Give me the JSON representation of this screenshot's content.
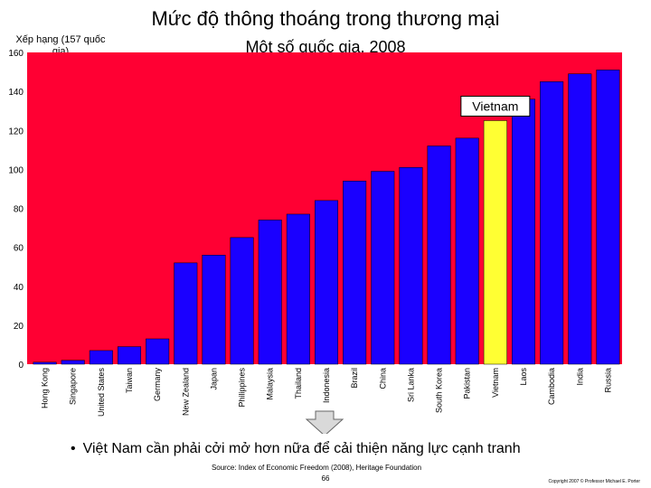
{
  "page": {
    "title": "Mức độ thông thoáng trong thương mại",
    "subtitle": "Một số quốc gia, 2008",
    "bullet": "Việt Nam cần phải cởi mở hơn nữa để cải thiện năng lực cạnh tranh",
    "source": "Source: Index of Economic Freedom (2008), Heritage Foundation",
    "page_number": "66",
    "copyright": "Copyright 2007 © Professor Michael E. Porter"
  },
  "chart_data": {
    "type": "bar",
    "ylabel": "Xếp hạng (157 quốc gia)",
    "ylim": [
      0,
      160
    ],
    "yticks": [
      0,
      20,
      40,
      60,
      80,
      100,
      120,
      140,
      160
    ],
    "categories": [
      "Hong Kong",
      "Singapore",
      "United States",
      "Taiwan",
      "Germany",
      "New Zealand",
      "Japan",
      "Philippines",
      "Malaysia",
      "Thailand",
      "Indonesia",
      "Brazil",
      "China",
      "Sri Lanka",
      "South Korea",
      "Pakistan",
      "Vietnam",
      "Laos",
      "Cambodia",
      "India",
      "Russia"
    ],
    "values": [
      1,
      2,
      7,
      9,
      13,
      52,
      56,
      65,
      74,
      77,
      84,
      94,
      99,
      101,
      112,
      116,
      125,
      136,
      145,
      149,
      151
    ],
    "highlight": "Vietnam",
    "annotation": "Vietnam",
    "colors": {
      "plot_bg": "#ff0033",
      "bar": "#1a00ff",
      "highlight": "#ffff33",
      "grid": "#ff6680"
    },
    "grid": false
  }
}
